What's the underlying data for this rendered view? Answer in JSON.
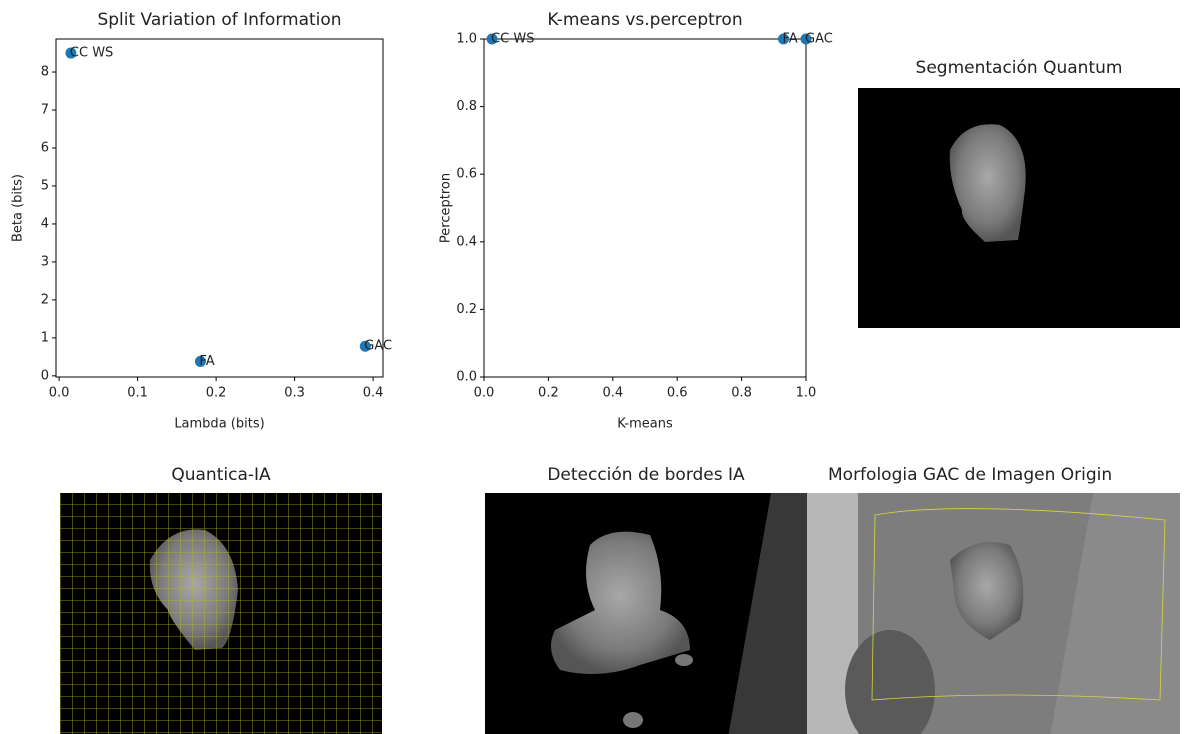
{
  "chart_data": [
    {
      "type": "scatter",
      "title": "Split Variation of Information",
      "x_label": "Lambda (bits)",
      "y_label": "Beta (bits)",
      "x": [
        0.015,
        0.18,
        0.39
      ],
      "values": [
        8.5,
        0.38,
        0.78
      ],
      "point_labels": [
        "CC WS",
        "FA",
        "GAC"
      ],
      "color": "#1f77b4",
      "xlim": [
        -0.004,
        0.4126
      ],
      "ylim": [
        -0.03,
        8.87
      ],
      "xticks": [
        {
          "value": 0,
          "label": "0.0"
        },
        0.1,
        0.2,
        0.3,
        0.4
      ],
      "yticks": [
        0,
        1,
        2,
        3,
        4,
        5,
        6,
        7,
        8
      ]
    },
    {
      "type": "scatter",
      "title": "K-means vs.perceptron",
      "x_label": "K-means",
      "y_label": "Perceptron",
      "x": [
        0.025,
        0.93,
        1.0
      ],
      "values": [
        1.0,
        1.0,
        1.0
      ],
      "point_labels": [
        "CC WS",
        "FA",
        "GAC"
      ],
      "color": "#1f77b4",
      "xlim": [
        0,
        1
      ],
      "ylim": [
        0,
        1
      ],
      "xticks": [
        {
          "value": 0,
          "label": "0.0"
        },
        0.2,
        0.4,
        0.6,
        0.8,
        {
          "value": 1,
          "label": "1.0"
        }
      ],
      "yticks": [
        {
          "value": 0,
          "label": "0.0"
        },
        0.2,
        0.4,
        0.6,
        0.8,
        {
          "value": 1,
          "label": "1.0"
        }
      ]
    }
  ],
  "panels": [
    {
      "title": "Segmentación Quantum"
    },
    {
      "title": "Quantica-IA"
    },
    {
      "title": "Detección de bordes IA"
    },
    {
      "title": "Morfologia GAC de Imagen Origin"
    }
  ]
}
